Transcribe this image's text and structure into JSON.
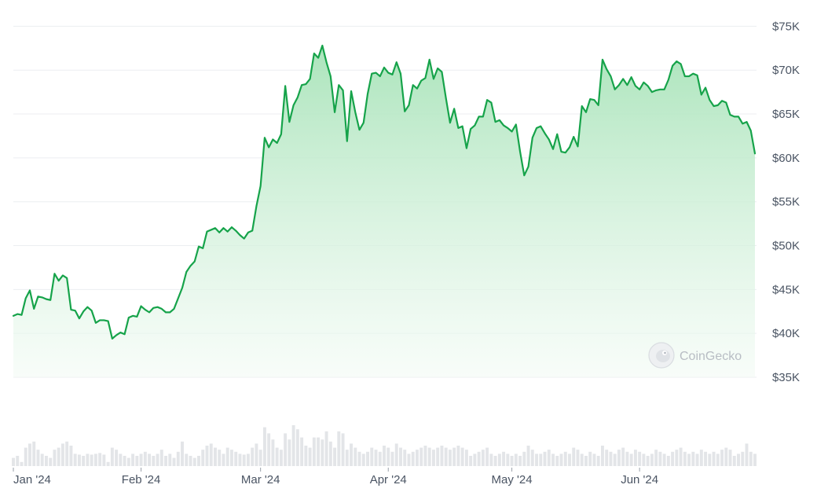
{
  "chart_data": {
    "type": "area",
    "series": [
      {
        "values": [
          42000,
          42200,
          42100,
          44000,
          44900,
          42800,
          44200,
          44100,
          43900,
          43800,
          46800,
          46000,
          46600,
          46300,
          42700,
          42600,
          41700,
          42500,
          43000,
          42600,
          41200,
          41500,
          41500,
          41400,
          39400,
          39800,
          40100,
          39900,
          41800,
          42000,
          41900,
          43100,
          42700,
          42400,
          42900,
          43000,
          42800,
          42400,
          42400,
          42800,
          44000,
          45200,
          47000,
          47700,
          48200,
          49900,
          49700,
          51600,
          51800,
          52000,
          51500,
          52000,
          51600,
          52100,
          51700,
          51200,
          50800,
          51500,
          51700,
          54500,
          56800,
          62300,
          61200,
          62100,
          61700,
          62700,
          68200,
          64100,
          66000,
          66900,
          68300,
          68400,
          69000,
          71900,
          71400,
          72800,
          70900,
          69300,
          65200,
          68300,
          67700,
          61900,
          67600,
          65200,
          63200,
          64000,
          67300,
          69600,
          69700,
          69300,
          70300,
          69700,
          69500,
          70900,
          69600,
          65300,
          66000,
          68300,
          67900,
          68800,
          69100,
          71200,
          69000,
          70200,
          69800,
          66800,
          64000,
          65600,
          63400,
          63600,
          61100,
          63300,
          63700,
          64700,
          64700,
          66600,
          66300,
          64100,
          64300,
          63700,
          63400,
          63000,
          63800,
          60700,
          58000,
          59000,
          62300,
          63400,
          63600,
          62800,
          62100,
          61000,
          62700,
          60700,
          60600,
          61200,
          62400,
          61300,
          65900,
          65200,
          66700,
          66600,
          66000,
          71200,
          70100,
          69300,
          67800,
          68300,
          69000,
          68300,
          69200,
          68200,
          67800,
          68600,
          68200,
          67500,
          67700,
          67800,
          67800,
          68900,
          70500,
          71000,
          70700,
          69300,
          69300,
          69600,
          69400,
          67200,
          68000,
          66600,
          65900,
          66000,
          66500,
          66300,
          64900,
          64700,
          64700,
          63900,
          64100,
          63100,
          60500
        ]
      }
    ],
    "volume": [
      0.2,
      0.25,
      0.1,
      0.45,
      0.55,
      0.6,
      0.4,
      0.3,
      0.25,
      0.2,
      0.4,
      0.45,
      0.55,
      0.6,
      0.5,
      0.3,
      0.28,
      0.25,
      0.3,
      0.28,
      0.3,
      0.32,
      0.28,
      0.1,
      0.45,
      0.4,
      0.3,
      0.25,
      0.2,
      0.3,
      0.25,
      0.3,
      0.35,
      0.3,
      0.25,
      0.3,
      0.4,
      0.25,
      0.3,
      0.2,
      0.35,
      0.6,
      0.3,
      0.25,
      0.2,
      0.25,
      0.4,
      0.5,
      0.55,
      0.45,
      0.4,
      0.3,
      0.45,
      0.4,
      0.35,
      0.3,
      0.28,
      0.3,
      0.45,
      0.55,
      0.4,
      0.95,
      0.8,
      0.65,
      0.45,
      0.4,
      0.8,
      0.65,
      1.0,
      0.9,
      0.7,
      0.5,
      0.45,
      0.7,
      0.7,
      0.65,
      0.85,
      0.6,
      0.45,
      0.85,
      0.8,
      0.4,
      0.55,
      0.45,
      0.35,
      0.3,
      0.35,
      0.45,
      0.4,
      0.35,
      0.5,
      0.45,
      0.35,
      0.55,
      0.45,
      0.4,
      0.3,
      0.35,
      0.4,
      0.45,
      0.5,
      0.45,
      0.4,
      0.45,
      0.5,
      0.45,
      0.4,
      0.45,
      0.5,
      0.45,
      0.4,
      0.25,
      0.3,
      0.35,
      0.4,
      0.45,
      0.3,
      0.25,
      0.3,
      0.35,
      0.3,
      0.25,
      0.3,
      0.25,
      0.35,
      0.5,
      0.4,
      0.3,
      0.3,
      0.35,
      0.4,
      0.3,
      0.25,
      0.3,
      0.35,
      0.3,
      0.45,
      0.4,
      0.3,
      0.25,
      0.35,
      0.3,
      0.25,
      0.5,
      0.4,
      0.35,
      0.3,
      0.4,
      0.45,
      0.35,
      0.3,
      0.4,
      0.35,
      0.3,
      0.25,
      0.3,
      0.4,
      0.35,
      0.3,
      0.25,
      0.35,
      0.4,
      0.45,
      0.35,
      0.3,
      0.35,
      0.3,
      0.4,
      0.35,
      0.3,
      0.35,
      0.3,
      0.4,
      0.45,
      0.4,
      0.25,
      0.3,
      0.35,
      0.55,
      0.35,
      0.3
    ],
    "ylim": [
      35000,
      76200
    ],
    "y_ticks": [
      35000,
      40000,
      45000,
      50000,
      55000,
      60000,
      65000,
      70000,
      75000
    ],
    "y_tick_labels": [
      "$35K",
      "$40K",
      "$45K",
      "$50K",
      "$55K",
      "$60K",
      "$65K",
      "$70K",
      "$75K"
    ],
    "x_ticks": [
      {
        "index": 0,
        "label": "Jan '24"
      },
      {
        "index": 31,
        "label": "Feb '24"
      },
      {
        "index": 60,
        "label": "Mar '24"
      },
      {
        "index": 91,
        "label": "Apr '24"
      },
      {
        "index": 121,
        "label": "May '24"
      },
      {
        "index": 152,
        "label": "Jun '24"
      }
    ],
    "grid": true,
    "colors": {
      "line": "#16a34a",
      "fill_top": "#a7e3b8",
      "fill_bottom": "#f3fbf5",
      "volume": "#e3e5e8",
      "grid": "#eceef1"
    }
  },
  "watermark": {
    "text": "CoinGecko",
    "icon": "gecko-icon"
  }
}
